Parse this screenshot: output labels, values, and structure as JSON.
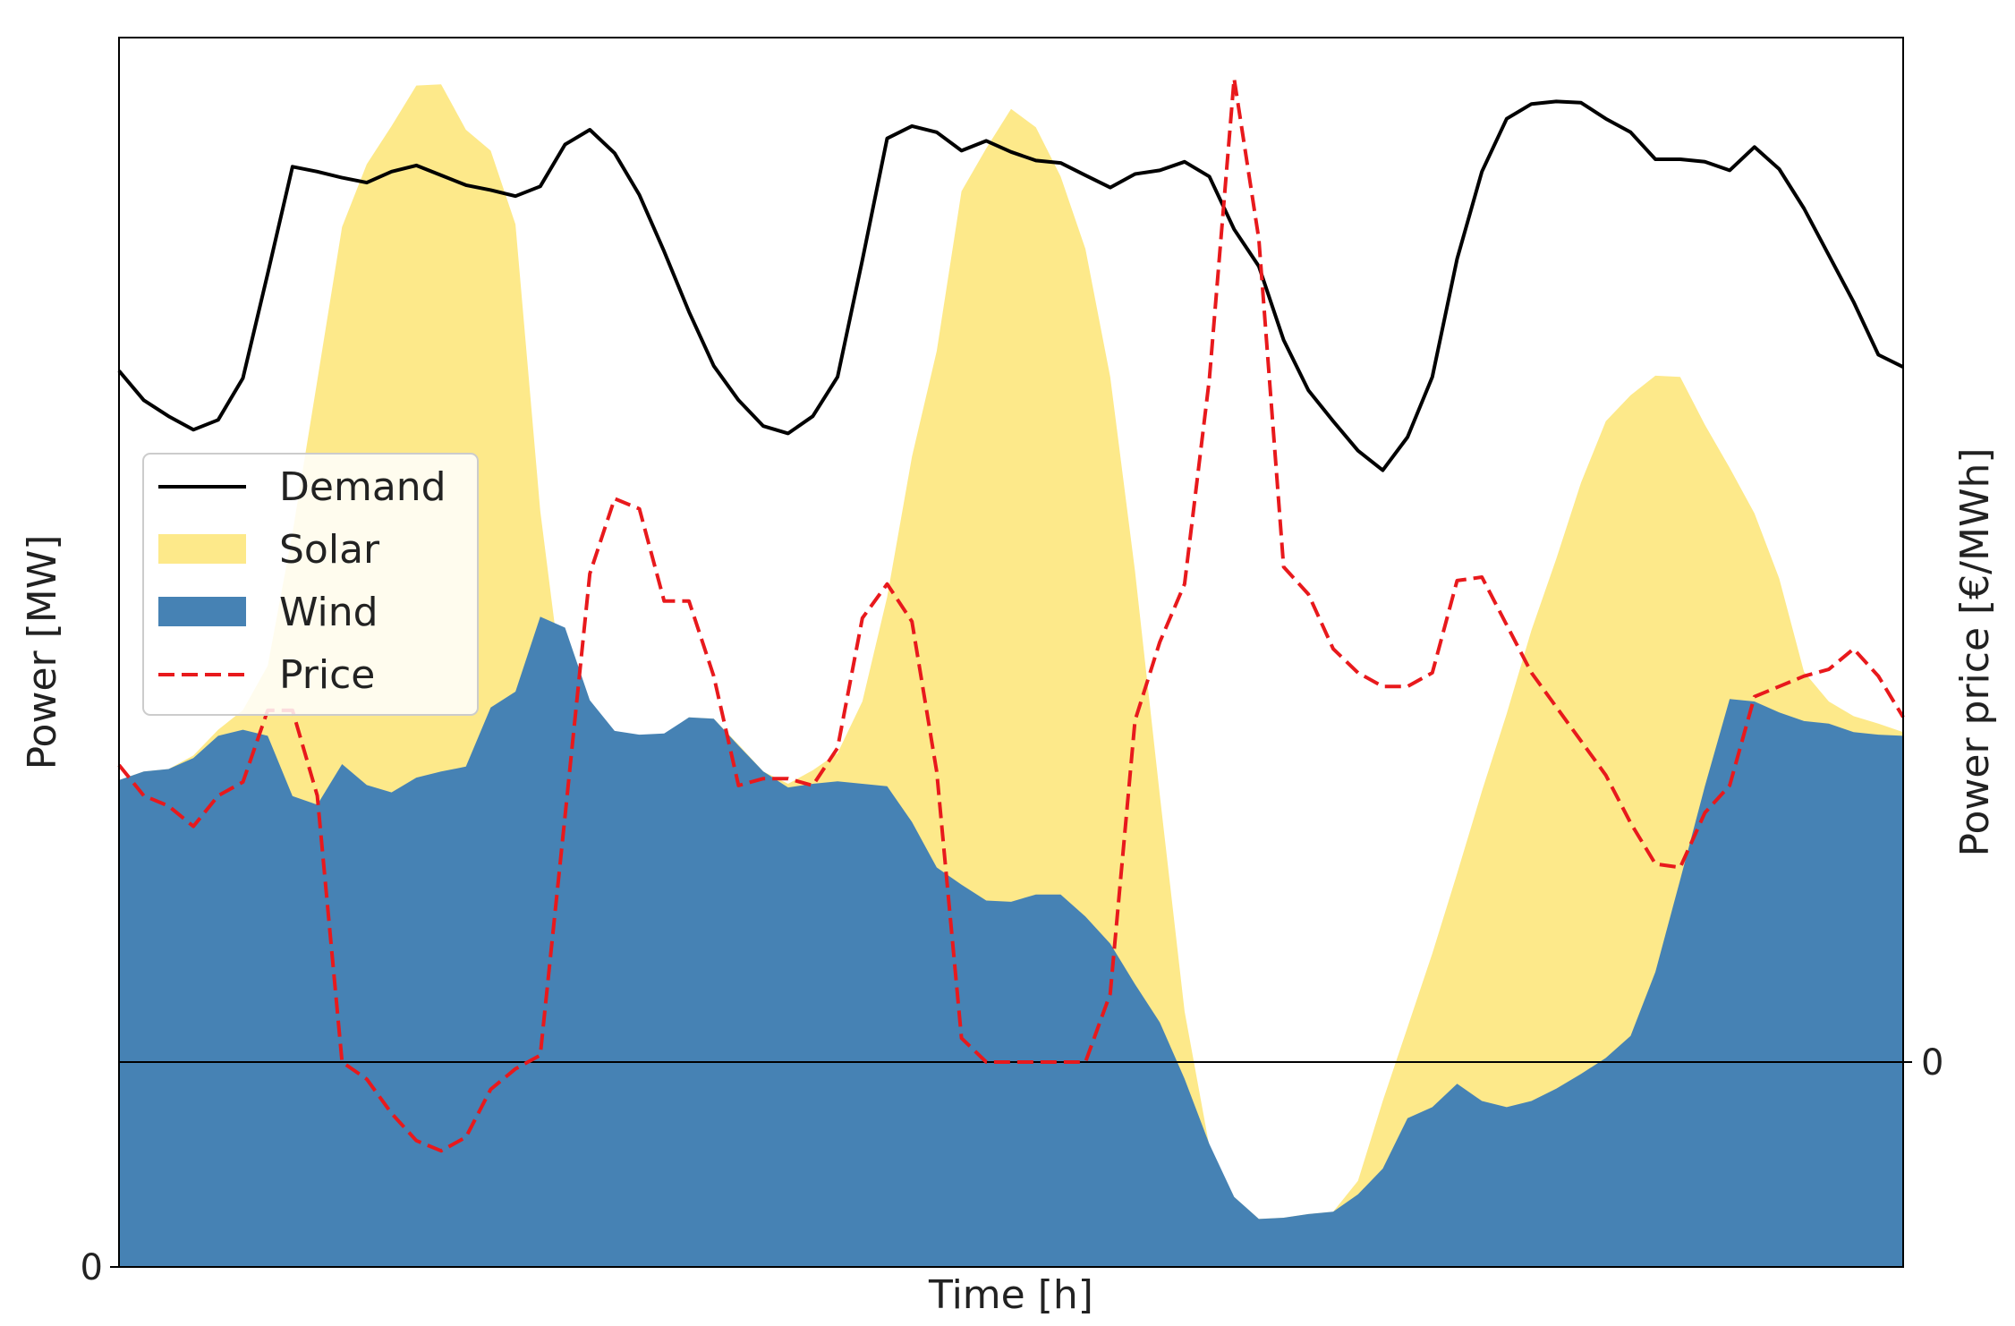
{
  "chart_data": {
    "type": "area",
    "xlabel": "Time [h]",
    "ylabel": "Power [MW]",
    "ylabel_right": "Power price [€/MWh]",
    "left_ticks": [
      {
        "value": 0,
        "label": "0"
      }
    ],
    "right_ticks": [
      {
        "value": 0,
        "label": "0"
      }
    ],
    "ylim": [
      0,
      100
    ],
    "ylim_right": [
      -60,
      300
    ],
    "xlim": [
      0,
      72
    ],
    "grid": false,
    "legend_position": "center-left",
    "zero_line_right": true,
    "colors": {
      "demand": "#000000",
      "solar": "#fde98a",
      "wind": "#4682b4",
      "price": "#e8191c",
      "zero_line": "#000000"
    },
    "legend": [
      {
        "key": "demand",
        "label": "Demand",
        "style": "line"
      },
      {
        "key": "solar",
        "label": "Solar",
        "style": "patch"
      },
      {
        "key": "wind",
        "label": "Wind",
        "style": "patch"
      },
      {
        "key": "price",
        "label": "Price",
        "style": "dashed"
      }
    ],
    "series": [
      {
        "key": "wind",
        "name": "Wind",
        "axis": "left",
        "kind": "area",
        "x": [
          0,
          1,
          2,
          3,
          4,
          5,
          6,
          7,
          8,
          9,
          10,
          11,
          12,
          13,
          14,
          15,
          16,
          17,
          18,
          19,
          20,
          21,
          22,
          23,
          24,
          25,
          26,
          27,
          28,
          29,
          30,
          31,
          32,
          33,
          34,
          35,
          36,
          37,
          38,
          39,
          40,
          41,
          42,
          43,
          44,
          45,
          46,
          47,
          48,
          49,
          50,
          51,
          52,
          53,
          54,
          55,
          56,
          57,
          58,
          59,
          60,
          61,
          62,
          63,
          64,
          65,
          66,
          67,
          68,
          69,
          70,
          71,
          72
        ],
        "values": [
          39.6,
          40.3,
          40.5,
          41.4,
          43.2,
          43.7,
          43.2,
          38.3,
          37.6,
          40.9,
          39.2,
          38.6,
          39.8,
          40.3,
          40.7,
          45.5,
          46.8,
          52.9,
          52.0,
          46.1,
          43.6,
          43.3,
          43.4,
          44.7,
          44.6,
          42.4,
          40.3,
          39.0,
          39.3,
          39.5,
          39.3,
          39.1,
          36.2,
          32.5,
          31.1,
          29.8,
          29.7,
          30.3,
          30.3,
          28.5,
          26.3,
          23.0,
          19.9,
          15.3,
          10.0,
          5.7,
          3.9,
          4.0,
          4.3,
          4.5,
          5.9,
          8.0,
          12.1,
          13.0,
          14.9,
          13.5,
          13.0,
          13.5,
          14.5,
          15.7,
          17.0,
          18.8,
          24.0,
          31.5,
          39.1,
          46.2,
          46.0,
          45.1,
          44.4,
          44.2,
          43.5,
          43.3,
          43.2
        ]
      },
      {
        "key": "solar",
        "name": "Solar",
        "axis": "left",
        "kind": "area",
        "x": [
          0,
          1,
          2,
          3,
          4,
          5,
          6,
          7,
          8,
          9,
          10,
          11,
          12,
          13,
          14,
          15,
          16,
          17,
          18,
          19,
          20,
          21,
          22,
          23,
          24,
          25,
          26,
          27,
          28,
          29,
          30,
          31,
          32,
          33,
          34,
          35,
          36,
          37,
          38,
          39,
          40,
          41,
          42,
          43,
          44,
          45,
          46,
          47,
          48,
          49,
          50,
          51,
          52,
          53,
          54,
          55,
          56,
          57,
          58,
          59,
          60,
          61,
          62,
          63,
          64,
          65,
          66,
          67,
          68,
          69,
          70,
          71,
          72
        ],
        "values": [
          39.6,
          40.3,
          40.5,
          41.6,
          43.7,
          45.3,
          48.9,
          59.7,
          72.1,
          84.6,
          89.7,
          92.8,
          96.1,
          96.2,
          92.5,
          90.8,
          84.8,
          61.5,
          45.6,
          43.5,
          43.2,
          43.3,
          43.3,
          44.7,
          44.6,
          42.5,
          40.3,
          39.3,
          40.4,
          41.8,
          46.0,
          54.5,
          65.9,
          74.5,
          87.5,
          91.0,
          94.2,
          92.7,
          88.7,
          82.8,
          72.4,
          56.6,
          38.4,
          20.8,
          9.8,
          5.7,
          3.9,
          4.0,
          4.3,
          4.5,
          7.0,
          13.5,
          19.5,
          25.5,
          32.0,
          38.7,
          45.0,
          51.8,
          57.6,
          63.8,
          68.8,
          70.9,
          72.5,
          72.4,
          68.5,
          65.0,
          61.3,
          56.0,
          48.4,
          46.0,
          44.8,
          44.2,
          43.5
        ]
      },
      {
        "key": "demand",
        "name": "Demand",
        "axis": "left",
        "kind": "line",
        "x": [
          0,
          1,
          2,
          3,
          4,
          5,
          6,
          7,
          8,
          9,
          10,
          11,
          12,
          13,
          14,
          15,
          16,
          17,
          18,
          19,
          20,
          21,
          22,
          23,
          24,
          25,
          26,
          27,
          28,
          29,
          30,
          31,
          32,
          33,
          34,
          35,
          36,
          37,
          38,
          39,
          40,
          41,
          42,
          43,
          44,
          45,
          46,
          47,
          48,
          49,
          50,
          51,
          52,
          53,
          54,
          55,
          56,
          57,
          58,
          59,
          60,
          61,
          62,
          63,
          64,
          65,
          66,
          67,
          68,
          69,
          70,
          71,
          72
        ],
        "values": [
          72.9,
          70.5,
          69.2,
          68.1,
          68.9,
          72.3,
          80.8,
          89.5,
          89.1,
          88.6,
          88.2,
          89.1,
          89.6,
          88.8,
          88.0,
          87.6,
          87.1,
          87.9,
          91.3,
          92.5,
          90.6,
          87.2,
          82.6,
          77.7,
          73.3,
          70.5,
          68.4,
          67.8,
          69.2,
          72.4,
          81.9,
          91.8,
          92.8,
          92.3,
          90.8,
          91.6,
          90.7,
          90.0,
          89.8,
          88.8,
          87.8,
          88.9,
          89.2,
          89.9,
          88.7,
          84.4,
          81.4,
          75.4,
          71.3,
          68.8,
          66.4,
          64.8,
          67.5,
          72.4,
          82.0,
          89.1,
          93.4,
          94.6,
          94.8,
          94.7,
          93.4,
          92.3,
          90.1,
          90.1,
          89.9,
          89.2,
          91.1,
          89.3,
          86.1,
          82.3,
          78.5,
          74.2,
          73.2
        ]
      },
      {
        "key": "price",
        "name": "Price",
        "axis": "right",
        "kind": "dashed",
        "x": [
          0,
          1,
          2,
          3,
          4,
          5,
          6,
          7,
          8,
          9,
          10,
          11,
          12,
          13,
          14,
          15,
          16,
          17,
          18,
          19,
          20,
          21,
          22,
          23,
          24,
          25,
          26,
          27,
          28,
          29,
          30,
          31,
          32,
          33,
          34,
          35,
          36,
          37,
          38,
          39,
          40,
          41,
          42,
          43,
          44,
          45,
          46,
          47,
          48,
          49,
          50,
          51,
          52,
          53,
          54,
          55,
          56,
          57,
          58,
          59,
          60,
          61,
          62,
          63,
          64,
          65,
          66,
          67,
          68,
          69,
          70,
          71,
          72
        ],
        "values": [
          87,
          78,
          75,
          69,
          78,
          82,
          103,
          103,
          78,
          0,
          -5,
          -15,
          -23,
          -26,
          -22,
          -8,
          -2,
          2,
          72,
          143,
          165,
          162,
          135,
          135,
          113,
          81,
          83,
          83,
          81,
          92,
          130,
          140,
          129,
          85,
          7,
          0,
          0,
          0,
          0,
          0,
          20,
          100,
          123,
          140,
          200,
          288,
          241,
          145,
          137,
          121,
          114,
          110,
          110,
          114,
          141,
          142,
          128,
          114,
          104,
          94,
          84,
          70,
          58,
          57,
          73,
          81,
          107,
          110,
          113,
          115,
          121,
          113,
          101
        ]
      }
    ]
  }
}
